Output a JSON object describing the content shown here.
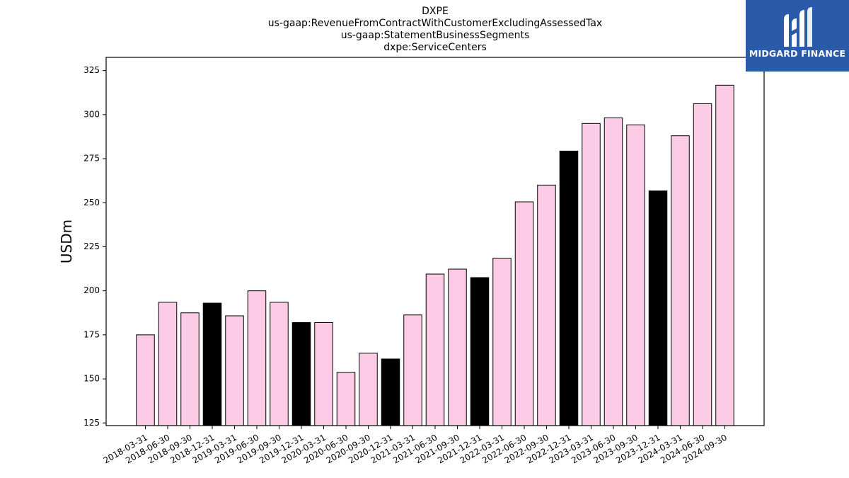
{
  "logo": {
    "text": "MIDGARD FINANCE",
    "background": "#2a5aa8",
    "mark_icon": "stylized-m-icon"
  },
  "chart_data": {
    "type": "bar",
    "title_lines": [
      "DXPE",
      "us-gaap:RevenueFromContractWithCustomerExcludingAssessedTax",
      "us-gaap:StatementBusinessSegments",
      "dxpe:ServiceCenters"
    ],
    "ylabel": "USDm",
    "xlabel": "",
    "ylim": [
      123.5,
      332.5
    ],
    "yticks": [
      125,
      150,
      175,
      200,
      225,
      250,
      275,
      300,
      325
    ],
    "categories": [
      "2018-03-31",
      "2018-06-30",
      "2018-09-30",
      "2018-12-31",
      "2019-03-31",
      "2019-06-30",
      "2019-09-30",
      "2019-12-31",
      "2020-03-31",
      "2020-06-30",
      "2020-09-30",
      "2020-12-31",
      "2021-03-31",
      "2021-06-30",
      "2021-09-30",
      "2021-12-31",
      "2022-03-31",
      "2022-06-30",
      "2022-09-30",
      "2022-12-31",
      "2023-03-31",
      "2023-06-30",
      "2023-09-30",
      "2023-12-31",
      "2024-03-31",
      "2024-06-30",
      "2024-09-30"
    ],
    "values": [
      175.0,
      193.5,
      187.5,
      193.0,
      185.8,
      200.0,
      193.5,
      182.0,
      182.0,
      153.7,
      164.6,
      161.3,
      186.3,
      209.5,
      212.3,
      207.5,
      218.5,
      250.5,
      260.0,
      279.3,
      295.0,
      298.2,
      294.2,
      256.7,
      288.0,
      306.2,
      316.7
    ],
    "bar_colors": {
      "quarter": "#fccce6",
      "year_end": "#000000",
      "edge": "#000000"
    },
    "grid": false,
    "legend": "none"
  }
}
